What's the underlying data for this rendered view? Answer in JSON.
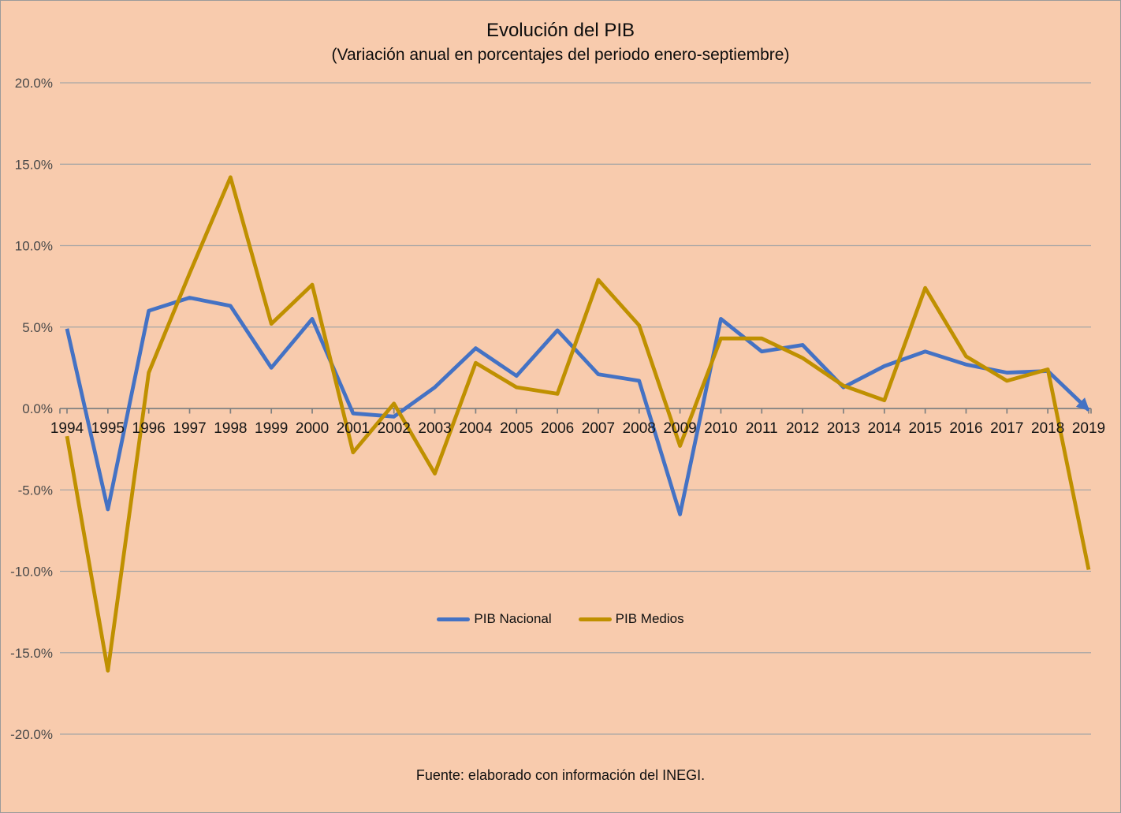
{
  "title": "Evolución del PIB",
  "subtitle": "(Variación anual en porcentajes del periodo enero-septiembre)",
  "footer": "Fuente: elaborado con información del INEGI.",
  "background_color": "#F8CBAD",
  "legend": [
    {
      "label": "PIB Nacional"
    },
    {
      "label": "PIB Medios"
    }
  ],
  "chart_data": {
    "type": "line",
    "x": [
      1994,
      1995,
      1996,
      1997,
      1998,
      1999,
      2000,
      2001,
      2002,
      2003,
      2004,
      2005,
      2006,
      2007,
      2008,
      2009,
      2010,
      2011,
      2012,
      2013,
      2014,
      2015,
      2016,
      2017,
      2018,
      2019
    ],
    "series": [
      {
        "name": "PIB Nacional",
        "color": "#4472C4",
        "arrow_end": true,
        "values": [
          4.9,
          -6.2,
          6.0,
          6.8,
          6.3,
          2.5,
          5.5,
          -0.3,
          -0.5,
          1.3,
          3.7,
          2.0,
          4.8,
          2.1,
          1.7,
          -6.5,
          5.5,
          3.5,
          3.9,
          1.3,
          2.6,
          3.5,
          2.7,
          2.2,
          2.3,
          -0.1
        ]
      },
      {
        "name": "PIB Medios",
        "color": "#BF9000",
        "arrow_end": false,
        "values": [
          -1.7,
          -16.1,
          2.2,
          8.3,
          14.2,
          5.2,
          7.6,
          -2.7,
          0.3,
          -4.0,
          2.8,
          1.3,
          0.9,
          7.9,
          5.1,
          -2.3,
          4.3,
          4.3,
          3.1,
          1.4,
          0.5,
          7.4,
          3.2,
          1.7,
          2.4,
          -9.9
        ]
      }
    ],
    "title": "Evolución del PIB",
    "subtitle": "(Variación anual en porcentajes del periodo enero-septiembre)",
    "xlabel": "",
    "ylabel": "",
    "ylim": [
      -20,
      20
    ],
    "yticks": [
      20,
      15,
      10,
      5,
      0,
      -5,
      -10,
      -15,
      -20
    ],
    "ytick_labels": [
      "20.0%",
      "15.0%",
      "10.0%",
      "5.0%",
      "0.0%",
      "-5.0%",
      "-10.0%",
      "-15.0%",
      "-20.0%"
    ],
    "grid": true,
    "gridline_color": "#A6A6A6",
    "axis_color": "#808080",
    "legend_position": "bottom-center"
  }
}
